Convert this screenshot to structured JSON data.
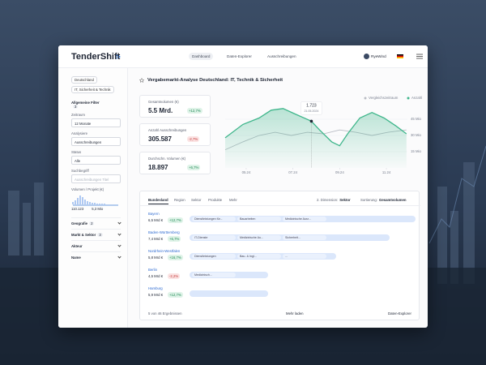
{
  "header": {
    "logo": "TenderShift",
    "nav": [
      "Dashboard",
      "Daten-Explorer",
      "Ausschreibungen"
    ],
    "user": "RyeWind"
  },
  "sidebar": {
    "chips": [
      "Deutschland",
      "IT, Sicherheit & Technik"
    ],
    "general_filters": {
      "title": "Allgemeine Filter",
      "count": "3"
    },
    "fields": [
      {
        "label": "Zeitraum",
        "value": "12 Monate"
      },
      {
        "label": "Analysiere",
        "value": "Ausschreibungen"
      },
      {
        "label": "Status",
        "value": "Alle"
      }
    ],
    "search": {
      "label": "Suchbegriff",
      "placeholder": "Ausschreibungen Titel"
    },
    "volume": {
      "label": "Volumen / Projekt (€)",
      "min": "110.123",
      "max": "5,3 Mio"
    },
    "sections": [
      {
        "title": "Geografie",
        "count": "2"
      },
      {
        "title": "Markt & Sektor",
        "count": "3"
      },
      {
        "title": "Akteur"
      },
      {
        "title": "Name"
      }
    ]
  },
  "main": {
    "title": "Vergabemarkt-Analyse Deutschland: IT, Technik & Sicherheit",
    "kpis": [
      {
        "label": "Gesamtvolumen (€)",
        "value": "5.5 Mrd.",
        "change": "+12,7%"
      },
      {
        "label": "Anzahl Ausschreibungen",
        "value": "305.587",
        "change": "-2,7%"
      },
      {
        "label": "Durchschn. Volumen (€)",
        "value": "18.897",
        "change": "+6,7%"
      }
    ],
    "chart_data": {
      "type": "line",
      "xlim": [
        4.1,
        11.9
      ],
      "ylim": [
        0,
        60
      ],
      "xticks": [
        {
          "value": 5,
          "label": "05.24"
        },
        {
          "value": 7,
          "label": "07.24"
        },
        {
          "value": 9,
          "label": "09.24"
        },
        {
          "value": 11,
          "label": "11.24"
        }
      ],
      "yticks": [
        {
          "value": 15,
          "label": "15 Mio"
        },
        {
          "value": 30,
          "label": "30 Mio"
        },
        {
          "value": 45,
          "label": "45 Mio"
        }
      ],
      "grid": true,
      "series": [
        {
          "name": "Anzahl",
          "color": "#3fb68b",
          "x": [
            4.1,
            4.86,
            5.55,
            6.07,
            6.58,
            7.1,
            7.79,
            8.14,
            8.66,
            9.0,
            9.34,
            9.86,
            10.38,
            10.9,
            11.41,
            11.86
          ],
          "values": [
            27.8,
            40.2,
            46.1,
            53.4,
            54.9,
            49.8,
            43.2,
            35.1,
            24.1,
            20.5,
            31.5,
            46.1,
            51.2,
            46.1,
            38.8,
            31.5
          ]
        },
        {
          "name": "Vergleichszeitraum",
          "color": "#b9bcc4",
          "x": [
            4.1,
            4.86,
            5.55,
            6.24,
            6.93,
            7.62,
            8.31,
            9.0,
            9.69,
            10.38,
            11.07,
            11.86
          ],
          "values": [
            16.8,
            24.1,
            30,
            32.9,
            30,
            32.9,
            31.5,
            35.1,
            32.9,
            30,
            32.9,
            35.1
          ]
        }
      ],
      "tooltip": {
        "value": "1.723",
        "date": "21.05.2024",
        "point": 6
      }
    },
    "table": {
      "tabs": [
        "Bundesland",
        "Region",
        "Sektor",
        "Produkte",
        "Mehr"
      ],
      "dimension": {
        "label": "2. Dimension:",
        "value": "Sektor"
      },
      "sort": {
        "label": "Sortierung:",
        "value": "Gesamtvolumen"
      },
      "rows": [
        {
          "name": "Bayern",
          "value": "6,5 Mrd €",
          "change": "+12,7%",
          "segments": [
            "Dienstleistungen für...",
            "Bauarbeiten",
            "Medizinische Ausr..."
          ]
        },
        {
          "name": "Baden-Württemberg",
          "value": "7,4 Mrd €",
          "change": "+6,7%",
          "segments": [
            "IT-Dienste",
            "Medizinische Au...",
            "Sicherheit..."
          ]
        },
        {
          "name": "Nordrhein-Westfalen",
          "value": "5,8 Mrd €",
          "change": "+16,7%",
          "segments": [
            "Dienstleistungen",
            "Bau- & Ingl...",
            "..."
          ]
        },
        {
          "name": "Berlin",
          "value": "4,5 Mrd €",
          "change": "-2,2%",
          "segments": [
            "Medizinisch..."
          ]
        },
        {
          "name": "Hamburg",
          "value": "5,9 Mrd €",
          "change": "+12,7%",
          "segments": []
        }
      ],
      "footer": {
        "count": "5 von 46 Ergebnissen",
        "more": "Mehr laden",
        "explorer": "Daten-Explorer"
      }
    }
  }
}
